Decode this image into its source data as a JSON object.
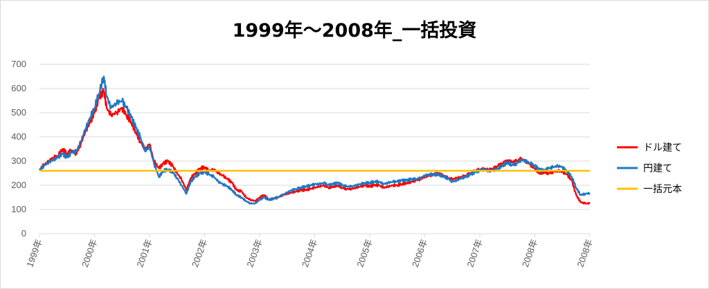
{
  "chart_data": {
    "type": "line",
    "title": "1999年～2008年_一括投資",
    "xlabel": "",
    "ylabel": "",
    "ylim": [
      0,
      700
    ],
    "yticks": [
      0,
      100,
      200,
      300,
      400,
      500,
      600,
      700
    ],
    "xlim": [
      1999,
      2009
    ],
    "xticks": [
      {
        "x": 1999,
        "label": "1999年"
      },
      {
        "x": 2000,
        "label": "2000年"
      },
      {
        "x": 2001,
        "label": "2001年"
      },
      {
        "x": 2002,
        "label": "2002年"
      },
      {
        "x": 2003,
        "label": "2003年"
      },
      {
        "x": 2004,
        "label": "2004年"
      },
      {
        "x": 2005,
        "label": "2005年"
      },
      {
        "x": 2006,
        "label": "2006年"
      },
      {
        "x": 2007,
        "label": "2007年"
      },
      {
        "x": 2008,
        "label": "2008年"
      },
      {
        "x": 2009,
        "label": "2008年"
      }
    ],
    "grid": true,
    "legend_position": "right",
    "series": [
      {
        "name": "ドル建て",
        "color": "#ff0000",
        "points": [
          [
            1999.0,
            265
          ],
          [
            1999.08,
            285
          ],
          [
            1999.17,
            300
          ],
          [
            1999.25,
            315
          ],
          [
            1999.33,
            320
          ],
          [
            1999.42,
            350
          ],
          [
            1999.5,
            330
          ],
          [
            1999.58,
            345
          ],
          [
            1999.67,
            330
          ],
          [
            1999.75,
            370
          ],
          [
            1999.83,
            420
          ],
          [
            1999.92,
            460
          ],
          [
            2000.0,
            500
          ],
          [
            2000.08,
            560
          ],
          [
            2000.17,
            590
          ],
          [
            2000.22,
            520
          ],
          [
            2000.3,
            490
          ],
          [
            2000.4,
            500
          ],
          [
            2000.5,
            520
          ],
          [
            2000.58,
            490
          ],
          [
            2000.67,
            460
          ],
          [
            2000.75,
            420
          ],
          [
            2000.83,
            380
          ],
          [
            2000.92,
            350
          ],
          [
            2001.0,
            370
          ],
          [
            2001.08,
            300
          ],
          [
            2001.17,
            270
          ],
          [
            2001.25,
            290
          ],
          [
            2001.33,
            300
          ],
          [
            2001.42,
            280
          ],
          [
            2001.5,
            250
          ],
          [
            2001.58,
            225
          ],
          [
            2001.67,
            180
          ],
          [
            2001.75,
            230
          ],
          [
            2001.83,
            250
          ],
          [
            2001.92,
            270
          ],
          [
            2002.0,
            275
          ],
          [
            2002.08,
            260
          ],
          [
            2002.17,
            265
          ],
          [
            2002.25,
            250
          ],
          [
            2002.33,
            240
          ],
          [
            2002.42,
            225
          ],
          [
            2002.5,
            210
          ],
          [
            2002.58,
            180
          ],
          [
            2002.67,
            175
          ],
          [
            2002.75,
            150
          ],
          [
            2002.83,
            140
          ],
          [
            2002.92,
            135
          ],
          [
            2003.0,
            150
          ],
          [
            2003.08,
            160
          ],
          [
            2003.17,
            140
          ],
          [
            2003.25,
            145
          ],
          [
            2003.33,
            150
          ],
          [
            2003.42,
            160
          ],
          [
            2003.5,
            165
          ],
          [
            2003.58,
            170
          ],
          [
            2003.67,
            175
          ],
          [
            2003.75,
            180
          ],
          [
            2003.83,
            180
          ],
          [
            2003.92,
            185
          ],
          [
            2004.0,
            190
          ],
          [
            2004.08,
            195
          ],
          [
            2004.17,
            200
          ],
          [
            2004.25,
            190
          ],
          [
            2004.33,
            195
          ],
          [
            2004.42,
            200
          ],
          [
            2004.5,
            190
          ],
          [
            2004.58,
            185
          ],
          [
            2004.67,
            185
          ],
          [
            2004.75,
            190
          ],
          [
            2004.83,
            195
          ],
          [
            2004.92,
            200
          ],
          [
            2005.0,
            195
          ],
          [
            2005.08,
            200
          ],
          [
            2005.17,
            200
          ],
          [
            2005.25,
            190
          ],
          [
            2005.33,
            195
          ],
          [
            2005.42,
            200
          ],
          [
            2005.5,
            200
          ],
          [
            2005.58,
            205
          ],
          [
            2005.67,
            210
          ],
          [
            2005.75,
            215
          ],
          [
            2005.83,
            220
          ],
          [
            2005.92,
            225
          ],
          [
            2006.0,
            235
          ],
          [
            2006.08,
            240
          ],
          [
            2006.17,
            245
          ],
          [
            2006.25,
            248
          ],
          [
            2006.33,
            240
          ],
          [
            2006.42,
            230
          ],
          [
            2006.5,
            225
          ],
          [
            2006.58,
            230
          ],
          [
            2006.67,
            235
          ],
          [
            2006.75,
            240
          ],
          [
            2006.83,
            250
          ],
          [
            2006.92,
            260
          ],
          [
            2007.0,
            265
          ],
          [
            2007.08,
            268
          ],
          [
            2007.17,
            265
          ],
          [
            2007.25,
            270
          ],
          [
            2007.33,
            280
          ],
          [
            2007.42,
            290
          ],
          [
            2007.5,
            300
          ],
          [
            2007.58,
            295
          ],
          [
            2007.67,
            300
          ],
          [
            2007.75,
            310
          ],
          [
            2007.83,
            300
          ],
          [
            2007.92,
            285
          ],
          [
            2008.0,
            270
          ],
          [
            2008.08,
            250
          ],
          [
            2008.17,
            255
          ],
          [
            2008.25,
            250
          ],
          [
            2008.33,
            255
          ],
          [
            2008.42,
            260
          ],
          [
            2008.5,
            255
          ],
          [
            2008.58,
            245
          ],
          [
            2008.67,
            220
          ],
          [
            2008.75,
            160
          ],
          [
            2008.83,
            130
          ],
          [
            2008.92,
            125
          ],
          [
            2009.0,
            125
          ]
        ]
      },
      {
        "name": "円建て",
        "color": "#1f77c4",
        "points": [
          [
            1999.0,
            262
          ],
          [
            1999.08,
            280
          ],
          [
            1999.17,
            295
          ],
          [
            1999.25,
            305
          ],
          [
            1999.33,
            315
          ],
          [
            1999.42,
            330
          ],
          [
            1999.5,
            315
          ],
          [
            1999.58,
            335
          ],
          [
            1999.67,
            340
          ],
          [
            1999.75,
            380
          ],
          [
            1999.83,
            430
          ],
          [
            1999.92,
            480
          ],
          [
            2000.0,
            520
          ],
          [
            2000.08,
            580
          ],
          [
            2000.17,
            650
          ],
          [
            2000.22,
            570
          ],
          [
            2000.3,
            520
          ],
          [
            2000.4,
            540
          ],
          [
            2000.5,
            550
          ],
          [
            2000.58,
            520
          ],
          [
            2000.67,
            480
          ],
          [
            2000.75,
            440
          ],
          [
            2000.83,
            400
          ],
          [
            2000.92,
            340
          ],
          [
            2001.0,
            360
          ],
          [
            2001.08,
            290
          ],
          [
            2001.17,
            235
          ],
          [
            2001.25,
            260
          ],
          [
            2001.33,
            265
          ],
          [
            2001.42,
            255
          ],
          [
            2001.5,
            230
          ],
          [
            2001.58,
            200
          ],
          [
            2001.67,
            165
          ],
          [
            2001.75,
            215
          ],
          [
            2001.83,
            235
          ],
          [
            2001.92,
            250
          ],
          [
            2002.0,
            255
          ],
          [
            2002.08,
            245
          ],
          [
            2002.17,
            235
          ],
          [
            2002.25,
            215
          ],
          [
            2002.33,
            205
          ],
          [
            2002.42,
            195
          ],
          [
            2002.5,
            180
          ],
          [
            2002.58,
            160
          ],
          [
            2002.67,
            150
          ],
          [
            2002.75,
            135
          ],
          [
            2002.83,
            125
          ],
          [
            2002.92,
            125
          ],
          [
            2003.0,
            140
          ],
          [
            2003.08,
            150
          ],
          [
            2003.17,
            140
          ],
          [
            2003.25,
            145
          ],
          [
            2003.33,
            150
          ],
          [
            2003.42,
            160
          ],
          [
            2003.5,
            170
          ],
          [
            2003.58,
            180
          ],
          [
            2003.67,
            185
          ],
          [
            2003.75,
            190
          ],
          [
            2003.83,
            195
          ],
          [
            2003.92,
            200
          ],
          [
            2004.0,
            205
          ],
          [
            2004.08,
            205
          ],
          [
            2004.17,
            210
          ],
          [
            2004.25,
            200
          ],
          [
            2004.33,
            205
          ],
          [
            2004.42,
            210
          ],
          [
            2004.5,
            200
          ],
          [
            2004.58,
            195
          ],
          [
            2004.67,
            195
          ],
          [
            2004.75,
            200
          ],
          [
            2004.83,
            205
          ],
          [
            2004.92,
            210
          ],
          [
            2005.0,
            210
          ],
          [
            2005.08,
            215
          ],
          [
            2005.17,
            215
          ],
          [
            2005.25,
            205
          ],
          [
            2005.33,
            210
          ],
          [
            2005.42,
            215
          ],
          [
            2005.5,
            215
          ],
          [
            2005.58,
            220
          ],
          [
            2005.67,
            220
          ],
          [
            2005.75,
            225
          ],
          [
            2005.83,
            225
          ],
          [
            2005.92,
            230
          ],
          [
            2006.0,
            240
          ],
          [
            2006.08,
            245
          ],
          [
            2006.17,
            245
          ],
          [
            2006.25,
            245
          ],
          [
            2006.33,
            238
          ],
          [
            2006.42,
            228
          ],
          [
            2006.5,
            215
          ],
          [
            2006.58,
            220
          ],
          [
            2006.67,
            230
          ],
          [
            2006.75,
            235
          ],
          [
            2006.83,
            245
          ],
          [
            2006.92,
            255
          ],
          [
            2007.0,
            262
          ],
          [
            2007.08,
            265
          ],
          [
            2007.17,
            258
          ],
          [
            2007.25,
            262
          ],
          [
            2007.33,
            270
          ],
          [
            2007.42,
            282
          ],
          [
            2007.5,
            295
          ],
          [
            2007.58,
            285
          ],
          [
            2007.67,
            290
          ],
          [
            2007.75,
            305
          ],
          [
            2007.83,
            300
          ],
          [
            2007.92,
            290
          ],
          [
            2008.0,
            280
          ],
          [
            2008.08,
            265
          ],
          [
            2008.17,
            260
          ],
          [
            2008.25,
            270
          ],
          [
            2008.33,
            275
          ],
          [
            2008.42,
            280
          ],
          [
            2008.5,
            275
          ],
          [
            2008.58,
            260
          ],
          [
            2008.67,
            235
          ],
          [
            2008.75,
            190
          ],
          [
            2008.83,
            160
          ],
          [
            2008.92,
            165
          ],
          [
            2009.0,
            168
          ]
        ]
      },
      {
        "name": "一括元本",
        "color": "#ffc000",
        "points": [
          [
            1999.0,
            260
          ],
          [
            2009.0,
            260
          ]
        ]
      }
    ]
  }
}
